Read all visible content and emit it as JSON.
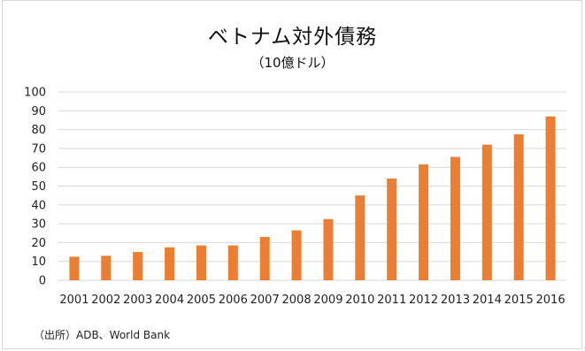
{
  "chart_data": {
    "type": "bar",
    "title": "ベトナム対外債務",
    "subtitle": "（10億ドル）",
    "xlabel": "",
    "ylabel": "",
    "ylim": [
      0,
      100
    ],
    "yticks": [
      "0",
      "10",
      "20",
      "30",
      "40",
      "50",
      "60",
      "70",
      "80",
      "90",
      "100"
    ],
    "categories": [
      "2001",
      "2002",
      "2003",
      "2004",
      "2005",
      "2006",
      "2007",
      "2008",
      "2009",
      "2010",
      "2011",
      "2012",
      "2013",
      "2014",
      "2015",
      "2016"
    ],
    "values": [
      12.5,
      13,
      15,
      17.5,
      18.5,
      18.5,
      23,
      26.5,
      32.5,
      45,
      54,
      61.5,
      65.5,
      72,
      77.5,
      87
    ],
    "grid": true,
    "legend": "none",
    "bar_color": "#ED7D31",
    "grid_color": "#d9d9d9"
  },
  "source": "（出所）ADB、World Bank"
}
